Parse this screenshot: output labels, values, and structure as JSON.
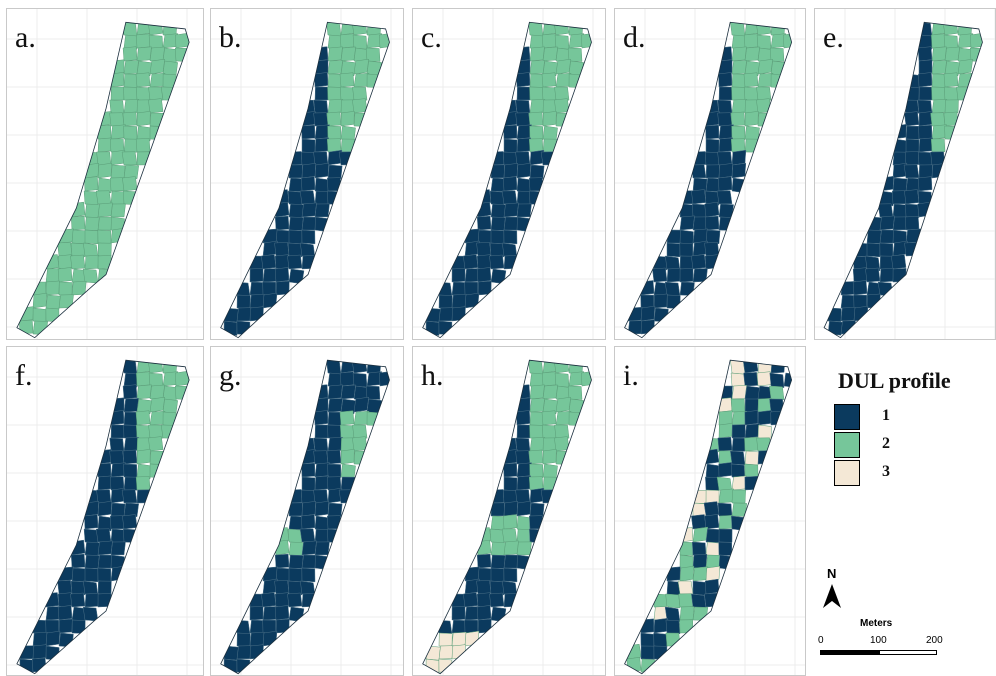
{
  "panels": [
    {
      "label": "a.",
      "scenario": "all-2"
    },
    {
      "label": "b.",
      "scenario": "b"
    },
    {
      "label": "c.",
      "scenario": "c"
    },
    {
      "label": "d.",
      "scenario": "d"
    },
    {
      "label": "e.",
      "scenario": "e"
    },
    {
      "label": "f.",
      "scenario": "f"
    },
    {
      "label": "g.",
      "scenario": "g"
    },
    {
      "label": "h.",
      "scenario": "h"
    },
    {
      "label": "i.",
      "scenario": "i"
    }
  ],
  "legend": {
    "title": "DUL profile",
    "items": [
      {
        "label": "1",
        "color": "#0b3a5e"
      },
      {
        "label": "2",
        "color": "#76c69a"
      },
      {
        "label": "3",
        "color": "#f4e8d6"
      }
    ]
  },
  "north": {
    "label": "N"
  },
  "scalebar": {
    "title": "Meters",
    "ticks": [
      "0",
      "100",
      "200"
    ]
  },
  "colors": {
    "grid": "#ececec",
    "cell_line": "#4a6f86",
    "cell_line_light": "#5a9d78"
  }
}
